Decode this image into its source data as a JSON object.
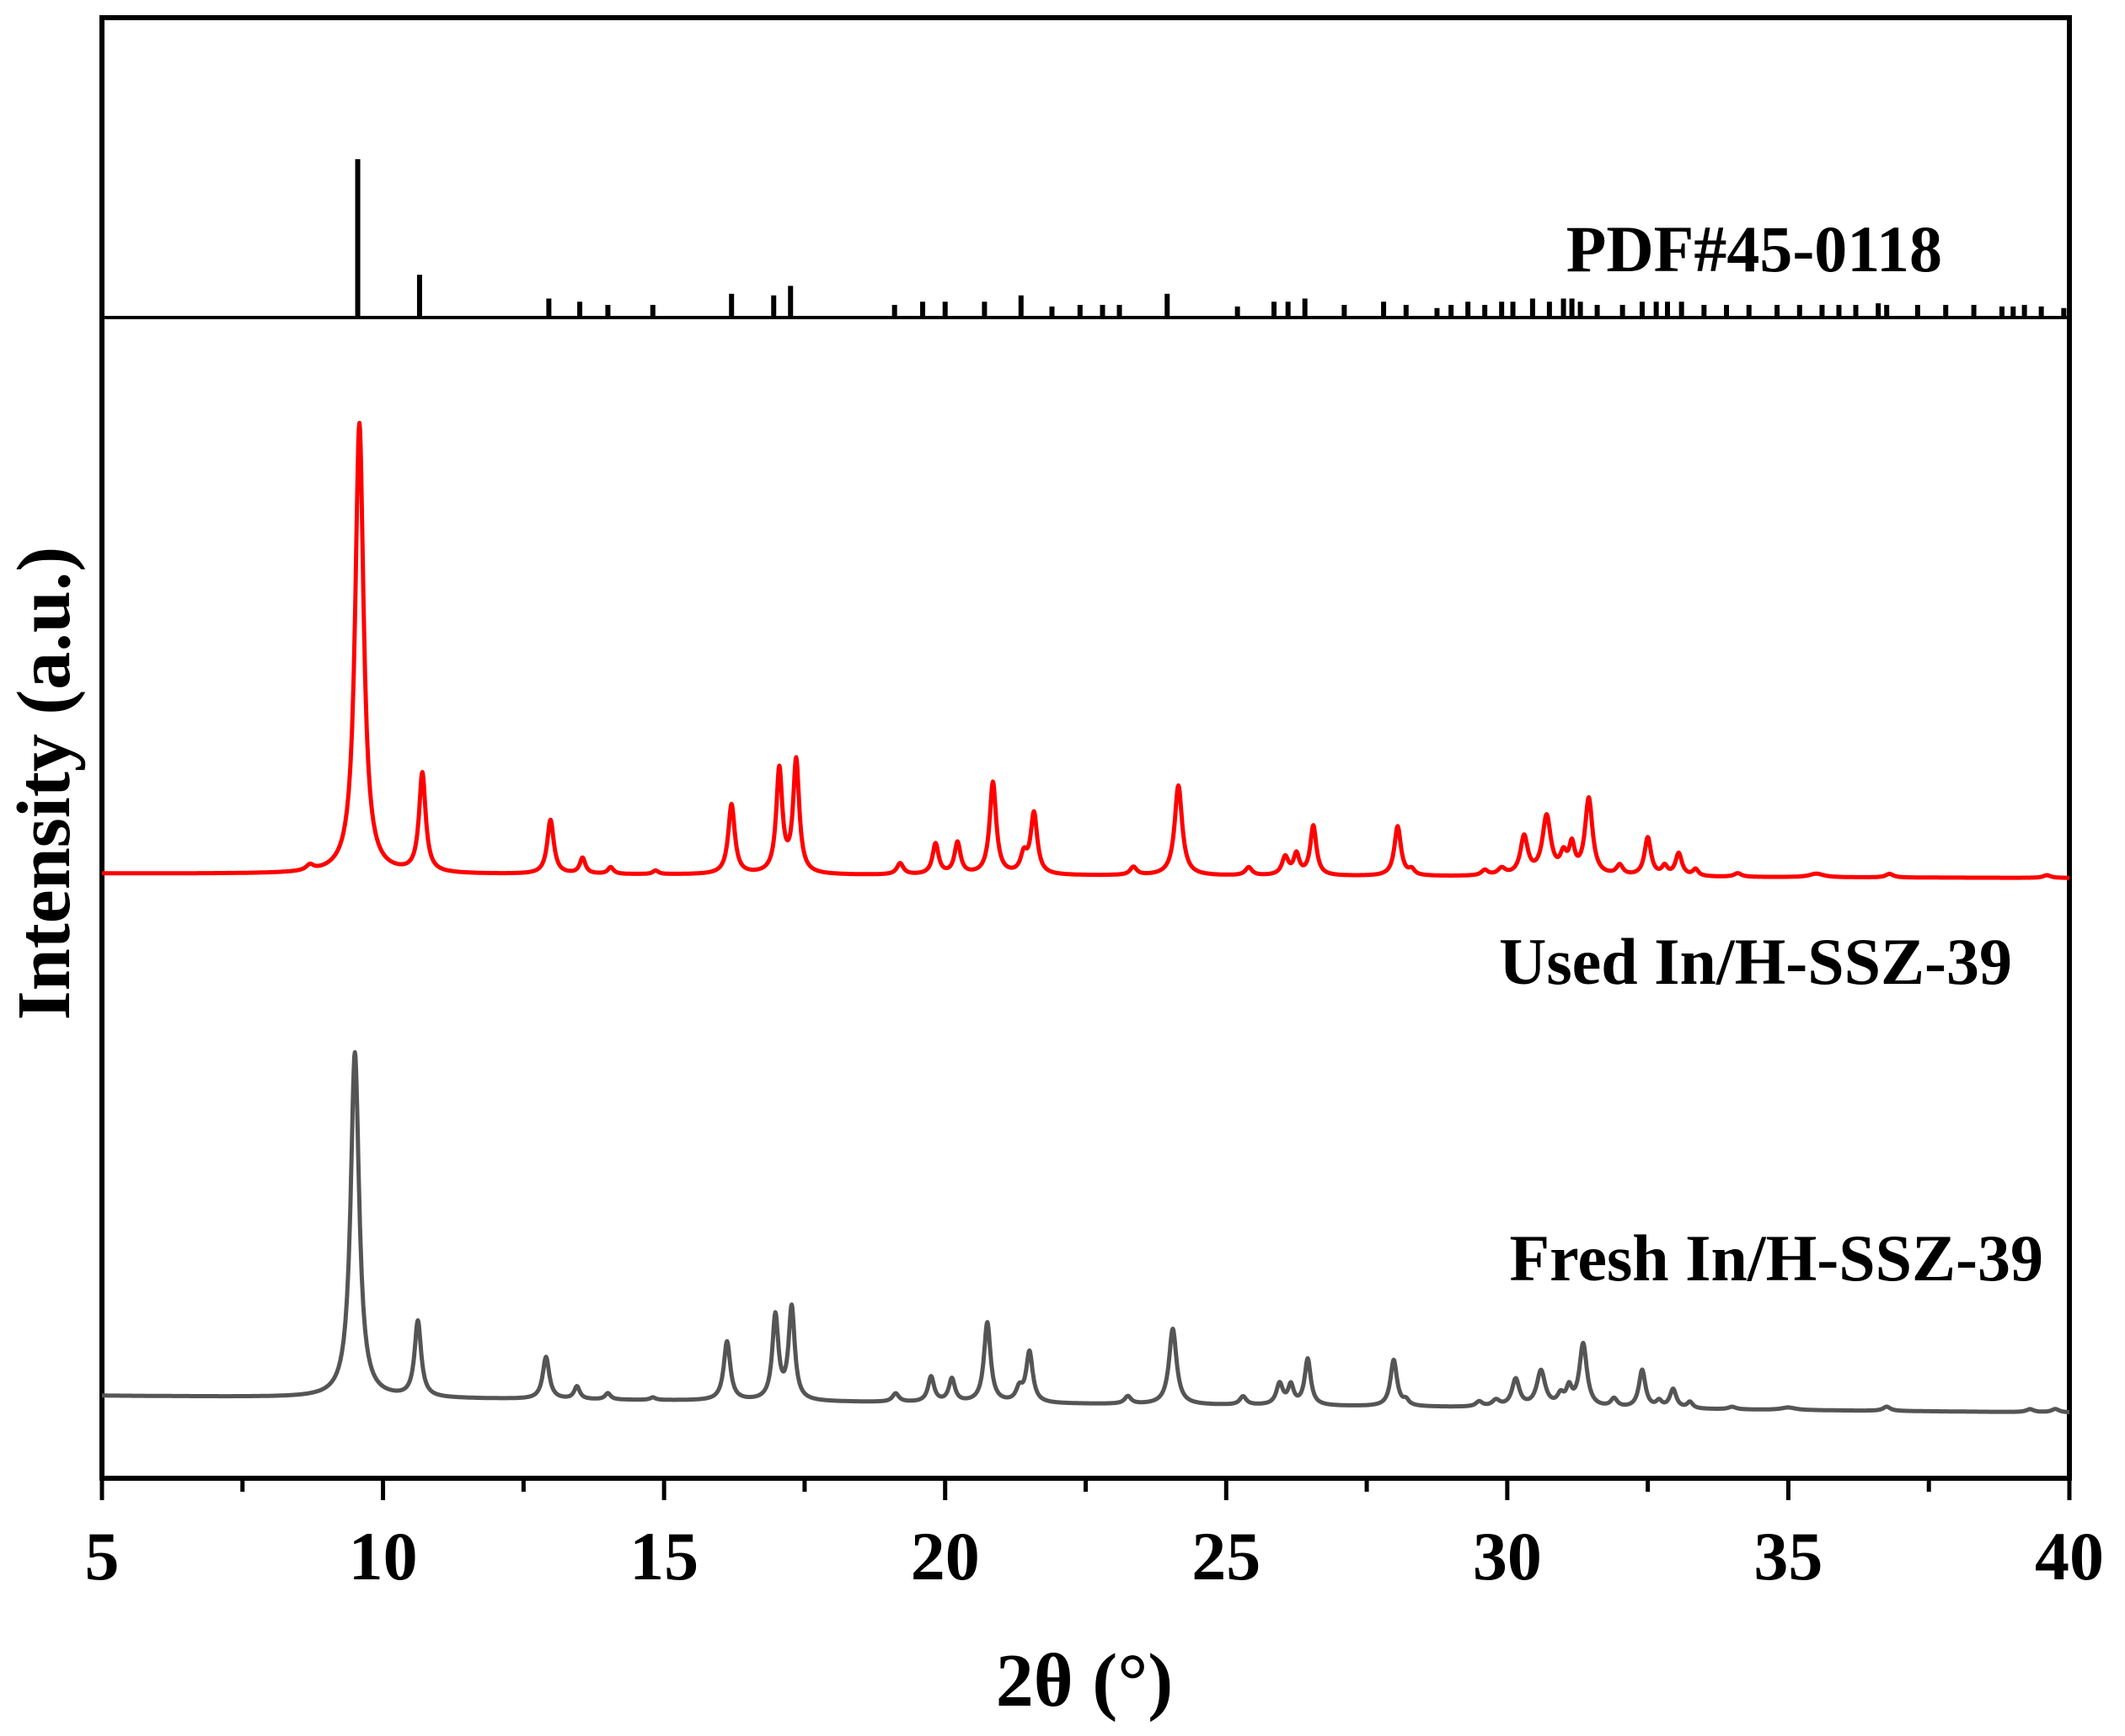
{
  "chart_data": {
    "type": "line",
    "title": "",
    "xlabel": "2θ (°)",
    "ylabel": "Intensity (a.u.)",
    "xlim": [
      5,
      40
    ],
    "x_ticks": [
      "5",
      "10",
      "15",
      "20",
      "25",
      "30",
      "35",
      "40"
    ],
    "reference": {
      "name": "PDF#45-0118",
      "color": "#000000",
      "peaks": [
        {
          "x": 9.55,
          "h": 1.0
        },
        {
          "x": 10.65,
          "h": 0.27
        },
        {
          "x": 12.95,
          "h": 0.12
        },
        {
          "x": 13.5,
          "h": 0.1
        },
        {
          "x": 14.0,
          "h": 0.08
        },
        {
          "x": 14.8,
          "h": 0.08
        },
        {
          "x": 16.2,
          "h": 0.15
        },
        {
          "x": 16.95,
          "h": 0.14
        },
        {
          "x": 17.25,
          "h": 0.2
        },
        {
          "x": 19.1,
          "h": 0.08
        },
        {
          "x": 19.6,
          "h": 0.1
        },
        {
          "x": 20.0,
          "h": 0.1
        },
        {
          "x": 20.7,
          "h": 0.1
        },
        {
          "x": 21.35,
          "h": 0.14
        },
        {
          "x": 21.9,
          "h": 0.07
        },
        {
          "x": 22.4,
          "h": 0.08
        },
        {
          "x": 22.8,
          "h": 0.08
        },
        {
          "x": 23.1,
          "h": 0.08
        },
        {
          "x": 23.95,
          "h": 0.15
        },
        {
          "x": 25.2,
          "h": 0.07
        },
        {
          "x": 25.85,
          "h": 0.1
        },
        {
          "x": 26.1,
          "h": 0.1
        },
        {
          "x": 26.4,
          "h": 0.12
        },
        {
          "x": 27.1,
          "h": 0.08
        },
        {
          "x": 27.8,
          "h": 0.1
        },
        {
          "x": 28.2,
          "h": 0.08
        },
        {
          "x": 28.75,
          "h": 0.06
        },
        {
          "x": 29.0,
          "h": 0.08
        },
        {
          "x": 29.3,
          "h": 0.1
        },
        {
          "x": 29.6,
          "h": 0.08
        },
        {
          "x": 29.9,
          "h": 0.1
        },
        {
          "x": 30.1,
          "h": 0.1
        },
        {
          "x": 30.45,
          "h": 0.12
        },
        {
          "x": 30.75,
          "h": 0.1
        },
        {
          "x": 31.0,
          "h": 0.12
        },
        {
          "x": 31.15,
          "h": 0.12
        },
        {
          "x": 31.3,
          "h": 0.1
        },
        {
          "x": 31.6,
          "h": 0.08
        },
        {
          "x": 32.05,
          "h": 0.08
        },
        {
          "x": 32.4,
          "h": 0.1
        },
        {
          "x": 32.65,
          "h": 0.1
        },
        {
          "x": 32.85,
          "h": 0.1
        },
        {
          "x": 33.1,
          "h": 0.1
        },
        {
          "x": 33.5,
          "h": 0.08
        },
        {
          "x": 33.9,
          "h": 0.08
        },
        {
          "x": 34.3,
          "h": 0.08
        },
        {
          "x": 34.8,
          "h": 0.08
        },
        {
          "x": 35.2,
          "h": 0.08
        },
        {
          "x": 35.6,
          "h": 0.08
        },
        {
          "x": 35.9,
          "h": 0.08
        },
        {
          "x": 36.2,
          "h": 0.08
        },
        {
          "x": 36.6,
          "h": 0.09
        },
        {
          "x": 36.75,
          "h": 0.08
        },
        {
          "x": 37.3,
          "h": 0.08
        },
        {
          "x": 37.8,
          "h": 0.08
        },
        {
          "x": 38.3,
          "h": 0.08
        },
        {
          "x": 38.8,
          "h": 0.07
        },
        {
          "x": 39.0,
          "h": 0.07
        },
        {
          "x": 39.2,
          "h": 0.08
        },
        {
          "x": 39.5,
          "h": 0.07
        },
        {
          "x": 39.9,
          "h": 0.06
        }
      ]
    },
    "series": [
      {
        "name": "Used In/H-SSZ-39",
        "color": "#ff0000",
        "baseline_start": 0.0,
        "baseline_end": -0.01,
        "peaks": [
          {
            "x": 8.7,
            "h": 0.012,
            "w": 0.08
          },
          {
            "x": 9.58,
            "h": 1.0,
            "w": 0.09
          },
          {
            "x": 10.7,
            "h": 0.22,
            "w": 0.07
          },
          {
            "x": 12.98,
            "h": 0.12,
            "w": 0.07
          },
          {
            "x": 13.55,
            "h": 0.035,
            "w": 0.06
          },
          {
            "x": 14.05,
            "h": 0.015,
            "w": 0.06
          },
          {
            "x": 14.85,
            "h": 0.008,
            "w": 0.06
          },
          {
            "x": 16.2,
            "h": 0.155,
            "w": 0.07
          },
          {
            "x": 17.05,
            "h": 0.23,
            "w": 0.065
          },
          {
            "x": 17.35,
            "h": 0.25,
            "w": 0.065
          },
          {
            "x": 19.2,
            "h": 0.025,
            "w": 0.07
          },
          {
            "x": 19.83,
            "h": 0.068,
            "w": 0.065
          },
          {
            "x": 20.22,
            "h": 0.07,
            "w": 0.065
          },
          {
            "x": 20.85,
            "h": 0.205,
            "w": 0.07
          },
          {
            "x": 21.4,
            "h": 0.04,
            "w": 0.07
          },
          {
            "x": 21.58,
            "h": 0.135,
            "w": 0.07
          },
          {
            "x": 23.35,
            "h": 0.018,
            "w": 0.07
          },
          {
            "x": 24.15,
            "h": 0.2,
            "w": 0.08
          },
          {
            "x": 25.4,
            "h": 0.018,
            "w": 0.07
          },
          {
            "x": 26.05,
            "h": 0.04,
            "w": 0.07
          },
          {
            "x": 26.25,
            "h": 0.045,
            "w": 0.06
          },
          {
            "x": 26.55,
            "h": 0.11,
            "w": 0.065
          },
          {
            "x": 28.05,
            "h": 0.11,
            "w": 0.07
          },
          {
            "x": 28.3,
            "h": 0.012,
            "w": 0.06
          },
          {
            "x": 29.6,
            "h": 0.012,
            "w": 0.07
          },
          {
            "x": 29.9,
            "h": 0.015,
            "w": 0.08
          },
          {
            "x": 30.3,
            "h": 0.085,
            "w": 0.08
          },
          {
            "x": 30.7,
            "h": 0.13,
            "w": 0.09
          },
          {
            "x": 31.0,
            "h": 0.04,
            "w": 0.07
          },
          {
            "x": 31.15,
            "h": 0.06,
            "w": 0.06
          },
          {
            "x": 31.45,
            "h": 0.17,
            "w": 0.08
          },
          {
            "x": 32.0,
            "h": 0.022,
            "w": 0.07
          },
          {
            "x": 32.5,
            "h": 0.085,
            "w": 0.07
          },
          {
            "x": 32.8,
            "h": 0.02,
            "w": 0.06
          },
          {
            "x": 33.05,
            "h": 0.05,
            "w": 0.07
          },
          {
            "x": 33.35,
            "h": 0.015,
            "w": 0.06
          },
          {
            "x": 34.1,
            "h": 0.008,
            "w": 0.08
          },
          {
            "x": 35.5,
            "h": 0.008,
            "w": 0.15
          },
          {
            "x": 36.8,
            "h": 0.008,
            "w": 0.08
          },
          {
            "x": 39.6,
            "h": 0.006,
            "w": 0.08
          }
        ]
      },
      {
        "name": "Fresh In/H-SSZ-39",
        "color": "#555555",
        "baseline_start": 0.01,
        "baseline_end": -0.03,
        "peaks": [
          {
            "x": 9.5,
            "h": 0.82,
            "w": 0.09
          },
          {
            "x": 10.62,
            "h": 0.18,
            "w": 0.07
          },
          {
            "x": 12.9,
            "h": 0.1,
            "w": 0.07
          },
          {
            "x": 13.45,
            "h": 0.03,
            "w": 0.06
          },
          {
            "x": 14.0,
            "h": 0.015,
            "w": 0.06
          },
          {
            "x": 14.8,
            "h": 0.006,
            "w": 0.06
          },
          {
            "x": 16.12,
            "h": 0.14,
            "w": 0.07
          },
          {
            "x": 16.98,
            "h": 0.2,
            "w": 0.065
          },
          {
            "x": 17.27,
            "h": 0.22,
            "w": 0.065
          },
          {
            "x": 19.12,
            "h": 0.02,
            "w": 0.07
          },
          {
            "x": 19.75,
            "h": 0.06,
            "w": 0.065
          },
          {
            "x": 20.12,
            "h": 0.055,
            "w": 0.065
          },
          {
            "x": 20.75,
            "h": 0.19,
            "w": 0.07
          },
          {
            "x": 21.32,
            "h": 0.03,
            "w": 0.07
          },
          {
            "x": 21.5,
            "h": 0.12,
            "w": 0.07
          },
          {
            "x": 23.25,
            "h": 0.018,
            "w": 0.07
          },
          {
            "x": 24.05,
            "h": 0.18,
            "w": 0.08
          },
          {
            "x": 25.3,
            "h": 0.02,
            "w": 0.07
          },
          {
            "x": 25.95,
            "h": 0.05,
            "w": 0.07
          },
          {
            "x": 26.15,
            "h": 0.045,
            "w": 0.06
          },
          {
            "x": 26.45,
            "h": 0.11,
            "w": 0.065
          },
          {
            "x": 27.98,
            "h": 0.11,
            "w": 0.07
          },
          {
            "x": 28.2,
            "h": 0.012,
            "w": 0.06
          },
          {
            "x": 29.5,
            "h": 0.012,
            "w": 0.07
          },
          {
            "x": 29.8,
            "h": 0.015,
            "w": 0.08
          },
          {
            "x": 30.15,
            "h": 0.065,
            "w": 0.08
          },
          {
            "x": 30.6,
            "h": 0.085,
            "w": 0.09
          },
          {
            "x": 30.95,
            "h": 0.025,
            "w": 0.07
          },
          {
            "x": 31.1,
            "h": 0.04,
            "w": 0.06
          },
          {
            "x": 31.35,
            "h": 0.15,
            "w": 0.08
          },
          {
            "x": 31.9,
            "h": 0.02,
            "w": 0.07
          },
          {
            "x": 32.4,
            "h": 0.09,
            "w": 0.07
          },
          {
            "x": 32.7,
            "h": 0.015,
            "w": 0.06
          },
          {
            "x": 32.95,
            "h": 0.045,
            "w": 0.07
          },
          {
            "x": 33.25,
            "h": 0.015,
            "w": 0.06
          },
          {
            "x": 34.0,
            "h": 0.006,
            "w": 0.08
          },
          {
            "x": 35.0,
            "h": 0.006,
            "w": 0.15
          },
          {
            "x": 36.75,
            "h": 0.01,
            "w": 0.08
          },
          {
            "x": 39.3,
            "h": 0.007,
            "w": 0.08
          },
          {
            "x": 39.75,
            "h": 0.008,
            "w": 0.08
          }
        ]
      }
    ]
  }
}
